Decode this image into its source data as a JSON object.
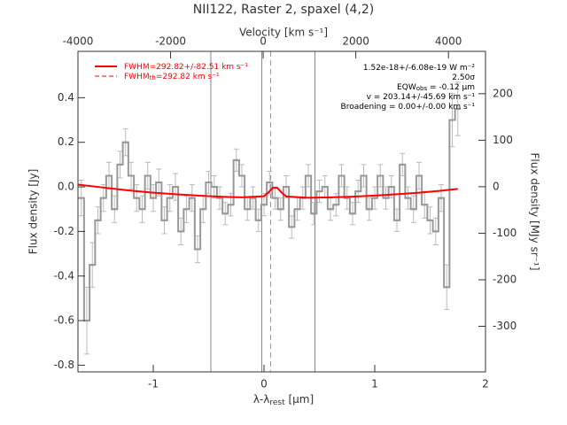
{
  "chart_data": {
    "type": "line",
    "title": "NII122, Raster 2, spaxel (4,2)",
    "xlabel": [
      "λ-λ",
      "rest",
      " [μm]"
    ],
    "ylabel": "Flux density [Jy]",
    "x2label": "Velocity [km s⁻¹]",
    "y2label": "Flux density [MJy sr⁻¹]",
    "xlim": [
      -1.68,
      2.0
    ],
    "xticks": [
      -1,
      0,
      1,
      2
    ],
    "ylim": [
      -0.83,
      0.608
    ],
    "yticks": [
      -0.8,
      -0.6,
      -0.4,
      -0.2,
      {
        "value": 0,
        "label": "0.0"
      },
      0.2,
      0.4
    ],
    "x2lim": [
      -4000,
      4800
    ],
    "x2ticks": [
      -4000,
      -2000,
      0,
      2000,
      4000
    ],
    "y2lim": [
      -398,
      291
    ],
    "y2ticks": [
      -300,
      -200,
      -100,
      0,
      100,
      200
    ],
    "vlines": [
      {
        "x": -0.48,
        "color": "#888888",
        "dash": false
      },
      {
        "x": -0.02,
        "color": "#888888",
        "dash": false
      },
      {
        "x": 0.06,
        "color": "#999999",
        "dash": true
      },
      {
        "x": 0.46,
        "color": "#888888",
        "dash": false
      }
    ],
    "series": [
      {
        "color": "#999999",
        "step": true,
        "errcolor": "#bbbbbb",
        "x": [
          -1.65,
          -1.6,
          -1.55,
          -1.5,
          -1.45,
          -1.4,
          -1.35,
          -1.3,
          -1.25,
          -1.2,
          -1.15,
          -1.1,
          -1.05,
          -1.0,
          -0.95,
          -0.9,
          -0.85,
          -0.8,
          -0.75,
          -0.7,
          -0.65,
          -0.6,
          -0.55,
          -0.5,
          -0.45,
          -0.4,
          -0.35,
          -0.3,
          -0.25,
          -0.2,
          -0.15,
          -0.1,
          -0.05,
          0.0,
          0.05,
          0.1,
          0.15,
          0.2,
          0.25,
          0.3,
          0.35,
          0.4,
          0.45,
          0.5,
          0.55,
          0.6,
          0.65,
          0.7,
          0.75,
          0.8,
          0.85,
          0.9,
          0.95,
          1.0,
          1.05,
          1.1,
          1.15,
          1.2,
          1.25,
          1.3,
          1.35,
          1.4,
          1.45,
          1.5,
          1.55,
          1.6,
          1.65,
          1.7,
          1.75
        ],
        "values": [
          -0.05,
          -0.6,
          -0.35,
          -0.15,
          -0.05,
          0.05,
          -0.1,
          0.1,
          0.2,
          0.05,
          -0.05,
          -0.1,
          0.05,
          -0.05,
          0.02,
          -0.15,
          -0.05,
          0.0,
          -0.2,
          -0.1,
          -0.05,
          -0.28,
          -0.1,
          0.02,
          0.0,
          -0.05,
          -0.12,
          -0.08,
          0.12,
          0.05,
          -0.1,
          -0.05,
          -0.15,
          -0.08,
          0.02,
          -0.05,
          -0.1,
          0.0,
          -0.18,
          -0.1,
          -0.05,
          0.05,
          -0.12,
          -0.02,
          0.0,
          -0.1,
          -0.08,
          0.05,
          -0.05,
          -0.12,
          -0.02,
          0.05,
          -0.1,
          -0.05,
          0.05,
          -0.05,
          0.0,
          -0.15,
          0.1,
          -0.05,
          -0.1,
          0.05,
          -0.08,
          -0.15,
          -0.2,
          -0.05,
          -0.45,
          0.3,
          0.35
        ],
        "errors": [
          0.08,
          0.15,
          0.1,
          0.06,
          0.06,
          0.06,
          0.06,
          0.06,
          0.06,
          0.06,
          0.06,
          0.06,
          0.06,
          0.06,
          0.06,
          0.06,
          0.06,
          0.06,
          0.06,
          0.06,
          0.06,
          0.06,
          0.06,
          0.05,
          0.05,
          0.05,
          0.05,
          0.05,
          0.05,
          0.05,
          0.05,
          0.05,
          0.05,
          0.05,
          0.05,
          0.05,
          0.05,
          0.05,
          0.05,
          0.05,
          0.05,
          0.05,
          0.05,
          0.05,
          0.05,
          0.05,
          0.05,
          0.05,
          0.05,
          0.05,
          0.05,
          0.05,
          0.05,
          0.05,
          0.05,
          0.05,
          0.05,
          0.05,
          0.05,
          0.05,
          0.06,
          0.06,
          0.06,
          0.06,
          0.06,
          0.06,
          0.1,
          0.12,
          0.12
        ]
      },
      {
        "color": "#ff0000",
        "step": false,
        "x": [
          -1.68,
          -1.4,
          -1.2,
          -1.0,
          -0.8,
          -0.6,
          -0.4,
          -0.2,
          0.0,
          0.04,
          0.08,
          0.12,
          0.16,
          0.2,
          0.4,
          0.6,
          0.8,
          1.0,
          1.2,
          1.4,
          1.6,
          1.75
        ],
        "values": [
          0.01,
          -0.006,
          -0.017,
          -0.026,
          -0.033,
          -0.039,
          -0.044,
          -0.047,
          -0.042,
          -0.025,
          -0.004,
          -0.004,
          -0.026,
          -0.043,
          -0.049,
          -0.047,
          -0.044,
          -0.039,
          -0.033,
          -0.026,
          -0.017,
          -0.009
        ]
      }
    ],
    "legend": [
      {
        "label": [
          "FWHM=292.82+/-82.51 km s⁻¹"
        ],
        "color": "#ff0000",
        "dash": false
      },
      {
        "label": [
          "FWHM",
          "th",
          "=292.82 km s⁻¹"
        ],
        "color": "#ff0000",
        "dash": true
      }
    ],
    "annotations": [
      [
        "1.52e-18+/-6.08e-19 W m⁻²"
      ],
      [
        "2.50σ"
      ],
      [
        "EQW",
        "obs",
        " = -0.12 μm"
      ],
      [
        "v = 203.14+/-45.69 km s⁻¹"
      ],
      [
        "Broadening = 0.00+/-0.00 km s⁻¹"
      ]
    ]
  }
}
